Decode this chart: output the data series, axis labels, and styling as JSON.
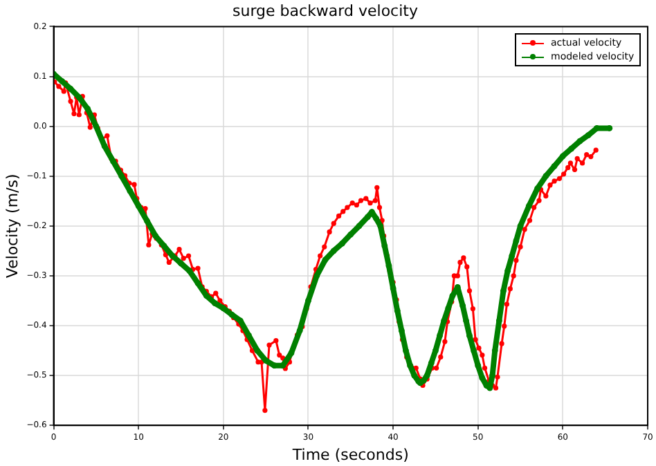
{
  "chart_data": {
    "type": "line",
    "title": "surge backward velocity",
    "xlabel": "Time (seconds)",
    "ylabel": "Velocity (m/s)",
    "xlim": [
      0,
      70
    ],
    "xticks": [
      0,
      10,
      20,
      30,
      40,
      50,
      60,
      70
    ],
    "ylim": [
      -0.6,
      0.2
    ],
    "yticks": [
      {
        "value": -0.6,
        "label": "−0.6"
      },
      {
        "value": -0.5,
        "label": "−0.5"
      },
      {
        "value": -0.4,
        "label": "−0.4"
      },
      {
        "value": -0.3,
        "label": "−0.3"
      },
      {
        "value": -0.2,
        "label": "−0.2"
      },
      {
        "value": -0.1,
        "label": "−0.1"
      },
      {
        "value": 0,
        "label": "0.0"
      },
      {
        "value": 0.1,
        "label": "0.1"
      },
      {
        "value": 0.2,
        "label": "0.2"
      }
    ],
    "grid": true,
    "legend": "top right",
    "marker": "circle",
    "line_style": "solid",
    "series": [
      {
        "name": "actual velocity",
        "color": "#ff0000",
        "x": [
          0.1,
          0.6,
          1.2,
          1.4,
          2.0,
          2.4,
          2.7,
          3.0,
          3.4,
          3.9,
          4.3,
          4.8,
          5.2,
          5.7,
          6.3,
          6.8,
          7.3,
          7.9,
          8.4,
          8.9,
          9.5,
          9.8,
          10.3,
          10.8,
          11.2,
          11.6,
          12.1,
          12.7,
          13.2,
          13.6,
          14.3,
          14.8,
          15.3,
          15.9,
          16.4,
          17.0,
          17.5,
          18.0,
          18.6,
          19.1,
          19.6,
          20.2,
          20.7,
          21.2,
          21.8,
          22.3,
          22.8,
          23.4,
          24.1,
          24.5,
          24.9,
          25.4,
          26.2,
          26.6,
          27.0,
          27.3,
          27.8,
          28.2,
          28.7,
          29.3,
          29.8,
          30.3,
          30.9,
          31.4,
          31.9,
          32.5,
          33.0,
          33.6,
          34.1,
          34.6,
          35.2,
          35.7,
          36.2,
          36.8,
          37.3,
          37.9,
          38.1,
          38.4,
          38.7,
          38.9,
          39.3,
          39.6,
          40.0,
          40.4,
          40.7,
          41.1,
          41.6,
          42.1,
          42.7,
          43.2,
          43.5,
          44.0,
          44.6,
          45.1,
          45.6,
          46.1,
          46.4,
          46.9,
          47.2,
          47.6,
          47.9,
          48.3,
          48.7,
          49.0,
          49.4,
          49.7,
          50.1,
          50.5,
          50.8,
          51.3,
          51.7,
          52.1,
          52.3,
          52.8,
          53.1,
          53.4,
          53.8,
          54.2,
          54.5,
          55.0,
          55.5,
          56.1,
          56.6,
          57.2,
          57.4,
          58.0,
          58.5,
          59.0,
          59.6,
          60.1,
          60.6,
          60.9,
          61.4,
          61.7,
          62.3,
          62.8,
          63.3,
          63.9
        ],
        "values": [
          0.089,
          0.08,
          0.07,
          0.087,
          0.05,
          0.025,
          0.058,
          0.023,
          0.06,
          0.027,
          -0.002,
          0.023,
          -0.004,
          -0.026,
          -0.019,
          -0.065,
          -0.07,
          -0.088,
          -0.099,
          -0.114,
          -0.117,
          -0.145,
          -0.163,
          -0.165,
          -0.238,
          -0.216,
          -0.225,
          -0.238,
          -0.258,
          -0.273,
          -0.26,
          -0.247,
          -0.265,
          -0.26,
          -0.287,
          -0.285,
          -0.322,
          -0.331,
          -0.342,
          -0.335,
          -0.35,
          -0.362,
          -0.371,
          -0.384,
          -0.397,
          -0.41,
          -0.428,
          -0.45,
          -0.473,
          -0.473,
          -0.57,
          -0.439,
          -0.43,
          -0.459,
          -0.465,
          -0.486,
          -0.473,
          -0.446,
          -0.419,
          -0.402,
          -0.366,
          -0.322,
          -0.287,
          -0.26,
          -0.242,
          -0.212,
          -0.195,
          -0.18,
          -0.171,
          -0.163,
          -0.154,
          -0.158,
          -0.149,
          -0.145,
          -0.154,
          -0.149,
          -0.123,
          -0.163,
          -0.189,
          -0.22,
          -0.26,
          -0.29,
          -0.313,
          -0.348,
          -0.392,
          -0.428,
          -0.463,
          -0.481,
          -0.485,
          -0.507,
          -0.52,
          -0.507,
          -0.485,
          -0.485,
          -0.463,
          -0.432,
          -0.392,
          -0.352,
          -0.3,
          -0.3,
          -0.273,
          -0.264,
          -0.282,
          -0.33,
          -0.366,
          -0.428,
          -0.445,
          -0.459,
          -0.485,
          -0.511,
          -0.52,
          -0.525,
          -0.503,
          -0.436,
          -0.401,
          -0.357,
          -0.326,
          -0.3,
          -0.269,
          -0.242,
          -0.207,
          -0.189,
          -0.163,
          -0.149,
          -0.127,
          -0.14,
          -0.118,
          -0.11,
          -0.105,
          -0.096,
          -0.083,
          -0.074,
          -0.087,
          -0.065,
          -0.074,
          -0.057,
          -0.061,
          -0.048
        ]
      },
      {
        "name": "modeled velocity",
        "color": "#008000",
        "x": [
          0,
          1,
          2,
          3,
          4,
          5,
          6,
          7,
          8,
          9,
          10,
          11,
          12,
          13,
          14,
          15,
          16,
          17,
          18,
          19,
          20,
          21,
          22,
          23,
          24,
          25,
          26,
          27,
          28,
          29,
          30,
          31,
          32,
          33,
          34,
          35,
          36,
          37,
          37.5,
          38,
          38.5,
          39,
          39.5,
          40,
          40.5,
          41,
          41.5,
          42,
          42.5,
          43,
          43.2,
          43.6,
          44,
          44.5,
          45,
          45.5,
          46,
          46.5,
          47,
          47.6,
          48.2,
          48.6,
          49,
          49.5,
          50,
          50.5,
          51,
          51.4,
          51.7,
          52,
          52.5,
          53,
          53.5,
          54,
          54.5,
          55,
          56,
          57,
          58,
          59,
          60,
          61,
          62,
          63,
          64,
          65.5
        ],
        "values": [
          0.105,
          0.09,
          0.075,
          0.058,
          0.035,
          0.0,
          -0.04,
          -0.07,
          -0.1,
          -0.13,
          -0.16,
          -0.19,
          -0.22,
          -0.24,
          -0.26,
          -0.275,
          -0.29,
          -0.315,
          -0.34,
          -0.355,
          -0.365,
          -0.378,
          -0.39,
          -0.42,
          -0.45,
          -0.47,
          -0.48,
          -0.48,
          -0.455,
          -0.41,
          -0.35,
          -0.3,
          -0.268,
          -0.25,
          -0.235,
          -0.217,
          -0.2,
          -0.182,
          -0.172,
          -0.185,
          -0.2,
          -0.24,
          -0.28,
          -0.325,
          -0.37,
          -0.41,
          -0.45,
          -0.48,
          -0.5,
          -0.512,
          -0.515,
          -0.51,
          -0.5,
          -0.475,
          -0.45,
          -0.42,
          -0.39,
          -0.365,
          -0.34,
          -0.323,
          -0.36,
          -0.39,
          -0.42,
          -0.45,
          -0.48,
          -0.505,
          -0.52,
          -0.525,
          -0.5,
          -0.45,
          -0.39,
          -0.33,
          -0.29,
          -0.26,
          -0.23,
          -0.2,
          -0.16,
          -0.125,
          -0.1,
          -0.08,
          -0.06,
          -0.045,
          -0.03,
          -0.018,
          -0.004,
          -0.004
        ]
      }
    ]
  }
}
